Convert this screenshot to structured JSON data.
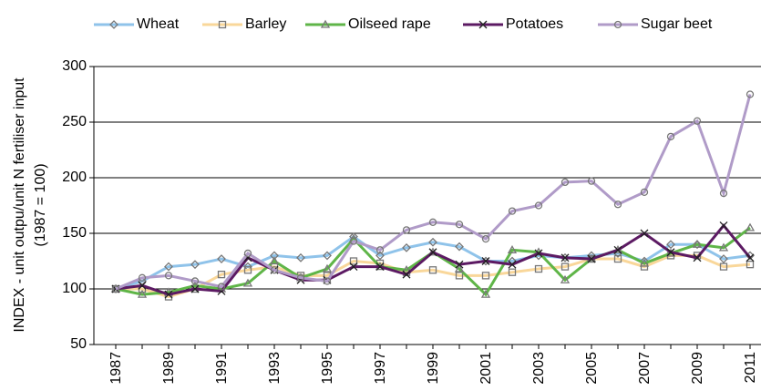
{
  "chart_data": {
    "type": "line",
    "y_label": [
      "INDEX - unit outpu/unit N fertiliser input",
      "(1987 = 100)"
    ],
    "categories": [
      "1987",
      null,
      "1989",
      null,
      "1991",
      null,
      "1993",
      null,
      "1995",
      null,
      "1997",
      null,
      "1999",
      null,
      "2001",
      null,
      "2003",
      null,
      "2005",
      null,
      "2007",
      null,
      "2009",
      null,
      "2011"
    ],
    "ylim": [
      50,
      300
    ],
    "yticks": [
      50,
      100,
      150,
      200,
      250,
      300
    ],
    "grid": true,
    "legend": "top",
    "series": [
      {
        "name": "Wheat",
        "color": "#8fc3ea",
        "marker": "diamond",
        "values": [
          100,
          107,
          120,
          122,
          127,
          120,
          130,
          128,
          130,
          147,
          130,
          137,
          142,
          138,
          125,
          125,
          130,
          128,
          130,
          132,
          125,
          140,
          140,
          127,
          130
        ]
      },
      {
        "name": "Barley",
        "color": "#f9d79a",
        "marker": "square",
        "values": [
          100,
          100,
          93,
          100,
          113,
          117,
          120,
          112,
          112,
          125,
          123,
          115,
          117,
          112,
          112,
          115,
          118,
          120,
          127,
          127,
          120,
          130,
          130,
          120,
          122
        ]
      },
      {
        "name": "Oilseed rape",
        "color": "#5fb548",
        "marker": "triangle",
        "values": [
          100,
          95,
          97,
          103,
          100,
          105,
          125,
          110,
          118,
          145,
          120,
          117,
          133,
          118,
          95,
          135,
          133,
          108,
          127,
          135,
          123,
          132,
          140,
          137,
          155
        ]
      },
      {
        "name": "Potatoes",
        "color": "#5c1a63",
        "marker": "cross",
        "values": [
          100,
          103,
          95,
          100,
          98,
          128,
          117,
          108,
          108,
          120,
          120,
          113,
          133,
          122,
          125,
          122,
          132,
          128,
          127,
          135,
          150,
          133,
          128,
          157,
          128
        ]
      },
      {
        "name": "Sugar beet",
        "color": "#b09bc8",
        "marker": "circle",
        "values": [
          100,
          110,
          112,
          107,
          102,
          132,
          117,
          110,
          107,
          143,
          135,
          153,
          160,
          158,
          145,
          170,
          175,
          196,
          197,
          176,
          187,
          237,
          251,
          186,
          275
        ]
      }
    ]
  }
}
